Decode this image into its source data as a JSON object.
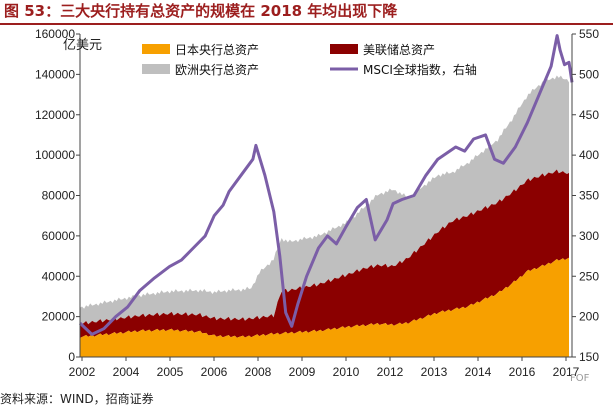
{
  "title": "图 53：三大央行持有总资产的规模在 2018 年均出现下降",
  "source": "资料来源：WIND，招商证券",
  "watermark": "FOF",
  "chart_data": {
    "type": "area",
    "stacked": true,
    "y_left_unit": "亿美元",
    "y_left_ticks": [
      "0",
      "20000",
      "40000",
      "60000",
      "80000",
      "100000",
      "120000",
      "140000",
      "160000"
    ],
    "y_left_range": [
      0,
      160000
    ],
    "y_right_ticks": [
      "150",
      "200",
      "250",
      "300",
      "350",
      "400",
      "450",
      "500",
      "550"
    ],
    "y_right_range": [
      150,
      550
    ],
    "x_tick_labels": [
      "2002",
      "2004",
      "2005",
      "2006",
      "2008",
      "2009",
      "2010",
      "2012",
      "2013",
      "2014",
      "2016",
      "2017"
    ],
    "x_range": [
      2002.0,
      2018.5
    ],
    "legend": {
      "japan": "日本央行总资产",
      "fed": "美联储总资产",
      "ecb": "欧洲央行总资产",
      "msci": "MSCI全球指数，右轴"
    },
    "colors": {
      "japan": "#f7a000",
      "fed": "#8b0000",
      "ecb": "#bfbfbf",
      "msci": "#7b5ea7"
    },
    "series": [
      {
        "name": "日本央行总资产",
        "x": [
          2002.0,
          2003.0,
          2004.0,
          2005.0,
          2006.0,
          2006.5,
          2007.5,
          2008.5,
          2009.0,
          2010.0,
          2011.0,
          2012.0,
          2012.5,
          2013.0,
          2013.5,
          2014.0,
          2015.0,
          2016.0,
          2016.5,
          2017.0,
          2017.5,
          2018.0,
          2018.4
        ],
        "values": [
          10000,
          11500,
          13000,
          13500,
          12500,
          10500,
          10000,
          11500,
          12000,
          13000,
          15000,
          16500,
          16000,
          17000,
          19500,
          22000,
          25000,
          31500,
          36500,
          42500,
          45000,
          48000,
          49000
        ]
      },
      {
        "name": "美联储总资产",
        "x": [
          2002.0,
          2003.0,
          2004.0,
          2005.0,
          2006.0,
          2007.0,
          2008.0,
          2008.5,
          2008.75,
          2009.0,
          2010.0,
          2011.0,
          2011.5,
          2012.0,
          2012.5,
          2013.0,
          2013.5,
          2014.0,
          2014.5,
          2015.0,
          2016.0,
          2017.0,
          2017.5,
          2018.0,
          2018.4
        ],
        "values": [
          6500,
          7000,
          7500,
          8000,
          8500,
          8700,
          8800,
          9000,
          21000,
          21000,
          23000,
          26000,
          28000,
          29000,
          29000,
          32000,
          36000,
          40000,
          44000,
          45000,
          45000,
          45000,
          45000,
          44000,
          42000
        ]
      },
      {
        "name": "欧洲央行总资产",
        "x": [
          2002.0,
          2003.0,
          2004.0,
          2005.0,
          2006.0,
          2007.0,
          2007.75,
          2008.0,
          2008.5,
          2009.0,
          2010.0,
          2011.0,
          2011.5,
          2012.0,
          2012.5,
          2013.0,
          2014.0,
          2014.5,
          2015.0,
          2016.0,
          2017.0,
          2017.5,
          2018.0,
          2018.4
        ],
        "values": [
          8000,
          9000,
          10000,
          11000,
          12000,
          14000,
          15000,
          22000,
          28000,
          24000,
          24000,
          26000,
          30000,
          35000,
          38000,
          30000,
          28000,
          24000,
          26000,
          31000,
          42000,
          46000,
          47000,
          46000
        ]
      },
      {
        "name": "MSCI全球指数，右轴",
        "axis": "right",
        "x": [
          2002.0,
          2002.4,
          2002.8,
          2003.2,
          2003.6,
          2004.0,
          2004.5,
          2005.0,
          2005.4,
          2005.8,
          2006.2,
          2006.5,
          2006.8,
          2007.0,
          2007.4,
          2007.8,
          2007.9,
          2008.2,
          2008.5,
          2008.7,
          2008.9,
          2009.1,
          2009.3,
          2009.6,
          2010.0,
          2010.3,
          2010.6,
          2010.9,
          2011.3,
          2011.6,
          2011.9,
          2012.3,
          2012.5,
          2012.8,
          2013.2,
          2013.6,
          2014.0,
          2014.4,
          2014.6,
          2014.9,
          2015.2,
          2015.6,
          2015.9,
          2016.2,
          2016.6,
          2017.0,
          2017.4,
          2017.8,
          2018.0,
          2018.1,
          2018.25,
          2018.4,
          2018.5
        ],
        "values": [
          192,
          178,
          185,
          200,
          212,
          232,
          248,
          262,
          270,
          285,
          300,
          325,
          338,
          355,
          375,
          395,
          412,
          375,
          330,
          275,
          205,
          188,
          215,
          250,
          285,
          300,
          290,
          310,
          335,
          345,
          295,
          320,
          340,
          345,
          350,
          375,
          395,
          405,
          410,
          405,
          420,
          425,
          395,
          390,
          410,
          440,
          475,
          510,
          548,
          530,
          512,
          515,
          490
        ]
      }
    ]
  }
}
